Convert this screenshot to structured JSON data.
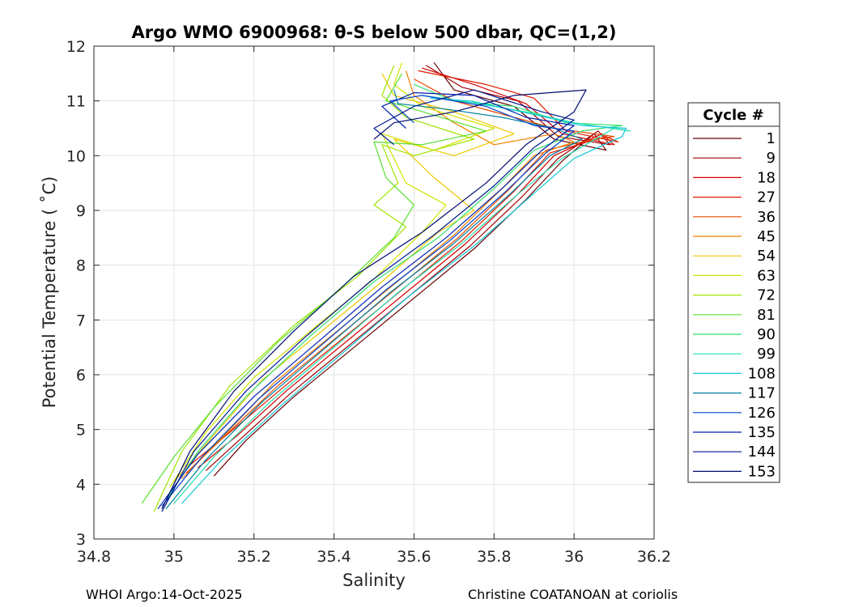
{
  "chart_data": {
    "type": "line",
    "title": "Argo WMO 6900968: θ-S below 500 dbar,  QC=(1,2)",
    "xlabel": "Salinity",
    "ylabel": "Potential Temperature ( ˚C)",
    "xlim": [
      34.8,
      36.2
    ],
    "ylim": [
      3,
      12
    ],
    "xticks": [
      34.8,
      35,
      35.2,
      35.4,
      35.6,
      35.8,
      36,
      36.2
    ],
    "xtick_labels": [
      "34.8",
      "35",
      "35.2",
      "35.4",
      "35.6",
      "35.8",
      "36",
      "36.2"
    ],
    "yticks": [
      3,
      4,
      5,
      6,
      7,
      8,
      9,
      10,
      11,
      12
    ],
    "ytick_labels": [
      "3",
      "4",
      "5",
      "6",
      "7",
      "8",
      "9",
      "10",
      "11",
      "12"
    ],
    "grid": true,
    "legend": {
      "title": "Cycle #",
      "placement": "outside-right",
      "entries": [
        "1",
        "9",
        "18",
        "27",
        "36",
        "45",
        "54",
        "63",
        "72",
        "81",
        "90",
        "99",
        "108",
        "117",
        "126",
        "135",
        "144",
        "153"
      ],
      "colors": [
        "#6a0000",
        "#a00000",
        "#d40000",
        "#e01c00",
        "#e84800",
        "#f08000",
        "#f0c800",
        "#d0e400",
        "#a0e400",
        "#58e030",
        "#30e070",
        "#20e0b0",
        "#10c8d8",
        "#0080a0",
        "#0040d0",
        "#0020b0",
        "#001890",
        "#000c70"
      ]
    },
    "series": [
      {
        "name": "1",
        "color": "#6a0000",
        "points": [
          [
            35.1,
            4.15
          ],
          [
            35.18,
            4.8
          ],
          [
            35.3,
            5.6
          ],
          [
            35.45,
            6.5
          ],
          [
            35.6,
            7.4
          ],
          [
            35.75,
            8.3
          ],
          [
            35.88,
            9.2
          ],
          [
            35.97,
            9.9
          ],
          [
            36.05,
            10.4
          ],
          [
            36.08,
            10.1
          ],
          [
            35.95,
            10.3
          ],
          [
            35.85,
            10.9
          ],
          [
            35.7,
            11.2
          ],
          [
            35.65,
            11.7
          ]
        ]
      },
      {
        "name": "9",
        "color": "#a00000",
        "points": [
          [
            35.08,
            4.25
          ],
          [
            35.17,
            4.85
          ],
          [
            35.29,
            5.65
          ],
          [
            35.44,
            6.55
          ],
          [
            35.59,
            7.45
          ],
          [
            35.74,
            8.35
          ],
          [
            35.87,
            9.25
          ],
          [
            35.96,
            9.95
          ],
          [
            36.06,
            10.45
          ],
          [
            36.09,
            10.2
          ],
          [
            35.96,
            10.35
          ],
          [
            35.86,
            11.0
          ],
          [
            35.72,
            11.25
          ],
          [
            35.63,
            11.65
          ]
        ]
      },
      {
        "name": "18",
        "color": "#d40000",
        "points": [
          [
            35.06,
            4.3
          ],
          [
            35.16,
            4.9
          ],
          [
            35.28,
            5.7
          ],
          [
            35.43,
            6.6
          ],
          [
            35.58,
            7.5
          ],
          [
            35.73,
            8.4
          ],
          [
            35.86,
            9.3
          ],
          [
            35.95,
            10.0
          ],
          [
            36.07,
            10.4
          ],
          [
            36.1,
            10.2
          ],
          [
            35.97,
            10.4
          ],
          [
            35.88,
            10.95
          ],
          [
            35.75,
            11.3
          ],
          [
            35.62,
            11.6
          ]
        ]
      },
      {
        "name": "27",
        "color": "#e01c00",
        "points": [
          [
            35.04,
            4.35
          ],
          [
            35.14,
            4.95
          ],
          [
            35.27,
            5.75
          ],
          [
            35.42,
            6.65
          ],
          [
            35.57,
            7.55
          ],
          [
            35.72,
            8.45
          ],
          [
            35.85,
            9.35
          ],
          [
            35.94,
            10.05
          ],
          [
            36.08,
            10.35
          ],
          [
            36.11,
            10.25
          ],
          [
            35.98,
            10.45
          ],
          [
            35.9,
            11.05
          ],
          [
            35.78,
            11.3
          ],
          [
            35.61,
            11.55
          ]
        ]
      },
      {
        "name": "36",
        "color": "#e84800",
        "points": [
          [
            35.03,
            4.2
          ],
          [
            35.13,
            4.9
          ],
          [
            35.26,
            5.8
          ],
          [
            35.41,
            6.7
          ],
          [
            35.56,
            7.6
          ],
          [
            35.71,
            8.5
          ],
          [
            35.84,
            9.4
          ],
          [
            35.93,
            10.1
          ],
          [
            36.05,
            10.3
          ],
          [
            36.1,
            10.35
          ],
          [
            35.95,
            10.5
          ],
          [
            35.85,
            10.7
          ],
          [
            35.7,
            11.0
          ],
          [
            35.6,
            11.4
          ]
        ]
      },
      {
        "name": "45",
        "color": "#f08000",
        "points": [
          [
            35.02,
            4.1
          ],
          [
            35.12,
            4.85
          ],
          [
            35.25,
            5.85
          ],
          [
            35.4,
            6.75
          ],
          [
            35.55,
            7.65
          ],
          [
            35.7,
            8.55
          ],
          [
            35.82,
            9.4
          ],
          [
            35.9,
            10.0
          ],
          [
            36.0,
            10.25
          ],
          [
            35.95,
            10.4
          ],
          [
            35.8,
            10.2
          ],
          [
            35.7,
            10.6
          ],
          [
            35.6,
            11.1
          ],
          [
            35.58,
            11.55
          ]
        ]
      },
      {
        "name": "54",
        "color": "#f0c800",
        "points": [
          [
            35.0,
            4.05
          ],
          [
            35.1,
            4.9
          ],
          [
            35.22,
            5.9
          ],
          [
            35.37,
            6.8
          ],
          [
            35.52,
            7.7
          ],
          [
            35.66,
            8.6
          ],
          [
            35.75,
            9.0
          ],
          [
            35.65,
            9.6
          ],
          [
            35.55,
            10.3
          ],
          [
            35.7,
            10.0
          ],
          [
            35.85,
            10.4
          ],
          [
            35.7,
            10.8
          ],
          [
            35.55,
            11.1
          ],
          [
            35.52,
            11.5
          ]
        ]
      },
      {
        "name": "63",
        "color": "#d0e400",
        "points": [
          [
            34.99,
            3.95
          ],
          [
            35.08,
            4.95
          ],
          [
            35.2,
            5.95
          ],
          [
            35.35,
            6.85
          ],
          [
            35.5,
            7.75
          ],
          [
            35.62,
            8.6
          ],
          [
            35.68,
            9.1
          ],
          [
            35.58,
            9.5
          ],
          [
            35.52,
            10.4
          ],
          [
            35.65,
            10.1
          ],
          [
            35.8,
            10.5
          ],
          [
            35.62,
            10.9
          ],
          [
            35.55,
            11.3
          ],
          [
            35.57,
            11.7
          ]
        ]
      },
      {
        "name": "72",
        "color": "#a0e400",
        "points": [
          [
            34.95,
            3.5
          ],
          [
            35.02,
            4.6
          ],
          [
            35.14,
            5.8
          ],
          [
            35.3,
            6.9
          ],
          [
            35.46,
            7.8
          ],
          [
            35.58,
            8.7
          ],
          [
            35.5,
            9.1
          ],
          [
            35.56,
            9.5
          ],
          [
            35.52,
            10.2
          ],
          [
            35.6,
            10.0
          ],
          [
            35.75,
            10.3
          ],
          [
            35.58,
            10.7
          ],
          [
            35.52,
            11.1
          ],
          [
            35.55,
            11.65
          ]
        ]
      },
      {
        "name": "81",
        "color": "#58e030",
        "points": [
          [
            34.92,
            3.65
          ],
          [
            35.0,
            4.5
          ],
          [
            35.1,
            5.4
          ],
          [
            35.26,
            6.6
          ],
          [
            35.42,
            7.6
          ],
          [
            35.55,
            8.5
          ],
          [
            35.6,
            9.1
          ],
          [
            35.53,
            9.6
          ],
          [
            35.5,
            10.25
          ],
          [
            35.62,
            10.2
          ],
          [
            35.78,
            10.45
          ],
          [
            35.6,
            10.85
          ],
          [
            35.53,
            11.0
          ],
          [
            35.57,
            11.5
          ]
        ]
      },
      {
        "name": "90",
        "color": "#30e070",
        "points": [
          [
            34.98,
            3.7
          ],
          [
            35.06,
            4.6
          ],
          [
            35.18,
            5.6
          ],
          [
            35.34,
            6.7
          ],
          [
            35.5,
            7.7
          ],
          [
            35.66,
            8.5
          ],
          [
            35.8,
            9.4
          ],
          [
            35.9,
            10.1
          ],
          [
            36.02,
            10.45
          ],
          [
            36.12,
            10.55
          ],
          [
            35.98,
            10.6
          ],
          [
            35.85,
            10.9
          ],
          [
            35.7,
            11.0
          ],
          [
            35.6,
            11.3
          ]
        ]
      },
      {
        "name": "99",
        "color": "#20e0b0",
        "points": [
          [
            35.0,
            3.65
          ],
          [
            35.1,
            4.5
          ],
          [
            35.24,
            5.5
          ],
          [
            35.4,
            6.5
          ],
          [
            35.56,
            7.5
          ],
          [
            35.72,
            8.4
          ],
          [
            35.86,
            9.3
          ],
          [
            35.97,
            9.95
          ],
          [
            36.1,
            10.5
          ],
          [
            36.14,
            10.45
          ],
          [
            36.0,
            10.6
          ],
          [
            35.88,
            10.8
          ],
          [
            35.72,
            11.0
          ],
          [
            35.62,
            11.1
          ]
        ]
      },
      {
        "name": "108",
        "color": "#10c8d8",
        "points": [
          [
            35.02,
            3.65
          ],
          [
            35.12,
            4.45
          ],
          [
            35.27,
            5.45
          ],
          [
            35.43,
            6.45
          ],
          [
            35.59,
            7.45
          ],
          [
            35.75,
            8.35
          ],
          [
            35.89,
            9.25
          ],
          [
            36.0,
            9.95
          ],
          [
            36.12,
            10.35
          ],
          [
            36.13,
            10.5
          ],
          [
            36.02,
            10.55
          ],
          [
            35.9,
            10.75
          ],
          [
            35.74,
            11.0
          ],
          [
            35.64,
            11.05
          ]
        ]
      },
      {
        "name": "117",
        "color": "#0080a0",
        "points": [
          [
            34.98,
            3.55
          ],
          [
            35.08,
            4.45
          ],
          [
            35.22,
            5.5
          ],
          [
            35.38,
            6.5
          ],
          [
            35.54,
            7.5
          ],
          [
            35.7,
            8.4
          ],
          [
            35.84,
            9.3
          ],
          [
            35.94,
            10.0
          ],
          [
            36.02,
            10.3
          ],
          [
            35.95,
            10.5
          ],
          [
            35.82,
            10.7
          ],
          [
            35.68,
            10.85
          ],
          [
            35.56,
            10.95
          ],
          [
            35.55,
            11.2
          ]
        ]
      },
      {
        "name": "126",
        "color": "#0040d0",
        "points": [
          [
            34.97,
            3.6
          ],
          [
            35.07,
            4.5
          ],
          [
            35.21,
            5.55
          ],
          [
            35.37,
            6.55
          ],
          [
            35.53,
            7.55
          ],
          [
            35.69,
            8.45
          ],
          [
            35.83,
            9.35
          ],
          [
            35.93,
            10.05
          ],
          [
            36.0,
            10.45
          ],
          [
            35.9,
            10.55
          ],
          [
            35.78,
            10.9
          ],
          [
            35.62,
            11.1
          ],
          [
            35.54,
            11.0
          ],
          [
            35.6,
            10.6
          ]
        ]
      },
      {
        "name": "135",
        "color": "#0020b0",
        "points": [
          [
            34.96,
            3.55
          ],
          [
            35.06,
            4.55
          ],
          [
            35.2,
            5.6
          ],
          [
            35.36,
            6.6
          ],
          [
            35.52,
            7.6
          ],
          [
            35.68,
            8.5
          ],
          [
            35.82,
            9.4
          ],
          [
            35.92,
            10.1
          ],
          [
            36.0,
            10.55
          ],
          [
            35.88,
            10.7
          ],
          [
            35.75,
            11.1
          ],
          [
            35.6,
            11.15
          ],
          [
            35.52,
            10.9
          ],
          [
            35.58,
            10.5
          ]
        ]
      },
      {
        "name": "144",
        "color": "#001890",
        "points": [
          [
            34.97,
            3.5
          ],
          [
            35.05,
            4.6
          ],
          [
            35.18,
            5.7
          ],
          [
            35.33,
            6.7
          ],
          [
            35.49,
            7.7
          ],
          [
            35.65,
            8.55
          ],
          [
            35.8,
            9.45
          ],
          [
            35.9,
            10.15
          ],
          [
            36.0,
            10.65
          ],
          [
            35.92,
            10.8
          ],
          [
            35.75,
            11.2
          ],
          [
            35.6,
            10.9
          ],
          [
            35.5,
            10.5
          ],
          [
            35.55,
            10.2
          ]
        ]
      },
      {
        "name": "153",
        "color": "#000c70",
        "points": [
          [
            34.97,
            3.55
          ],
          [
            35.04,
            4.6
          ],
          [
            35.15,
            5.7
          ],
          [
            35.3,
            6.8
          ],
          [
            35.45,
            7.8
          ],
          [
            35.62,
            8.6
          ],
          [
            35.78,
            9.5
          ],
          [
            35.88,
            10.2
          ],
          [
            36.0,
            10.8
          ],
          [
            36.03,
            11.2
          ],
          [
            35.85,
            11.1
          ],
          [
            35.7,
            10.8
          ],
          [
            35.55,
            10.6
          ],
          [
            35.5,
            10.3
          ]
        ]
      }
    ]
  },
  "footer": {
    "left": "WHOI Argo:14-Oct-2025",
    "right": "Christine COATANOAN at coriolis"
  }
}
